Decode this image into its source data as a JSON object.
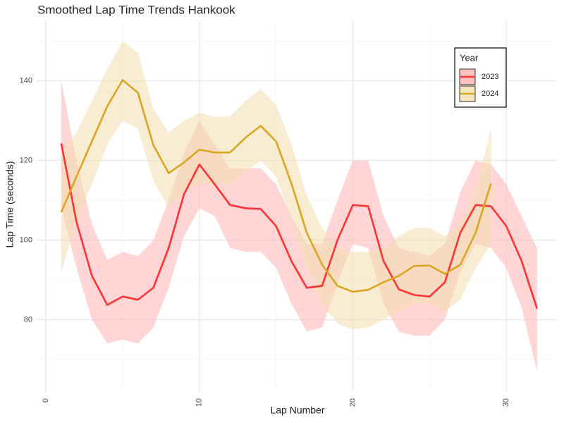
{
  "chart_data": {
    "type": "line",
    "title": "Smoothed Lap Time Trends Hankook",
    "x_label": "Lap Number",
    "y_label": "Lap Time (seconds)",
    "xlim": [
      -0.6,
      33.3
    ],
    "ylim": [
      62,
      155
    ],
    "xticks": [
      0,
      10,
      20,
      30
    ],
    "yticks": [
      80,
      100,
      120,
      140
    ],
    "grid": true,
    "legend_title": "Year",
    "legend_position": "top-right",
    "series": [
      {
        "name": "2023",
        "color": "#ff3333",
        "band_color": "#ffb3b3",
        "x": [
          1,
          2,
          3,
          4,
          5,
          6,
          7,
          8,
          9,
          10,
          11,
          12,
          13,
          14,
          15,
          16,
          17,
          18,
          19,
          20,
          21,
          22,
          23,
          24,
          25,
          26,
          27,
          28,
          29,
          30,
          31,
          32
        ],
        "values": [
          124.3,
          104.5,
          91,
          83.7,
          85.8,
          85,
          88,
          98,
          111.5,
          119,
          114,
          108.8,
          108,
          107.8,
          103.5,
          94.7,
          88,
          88.5,
          100,
          108.8,
          108.5,
          94.7,
          87.6,
          86.2,
          85.8,
          89.4,
          101.8,
          108.8,
          108.5,
          103.5,
          94.7,
          82.8
        ],
        "lower": [
          108,
          93,
          80,
          74,
          75,
          74,
          78,
          88,
          101,
          108,
          106,
          98,
          97,
          97,
          93,
          84,
          77,
          78,
          89,
          99,
          98,
          84,
          77,
          76,
          76,
          80,
          92,
          99,
          98,
          93,
          83,
          67
        ],
        "upper": [
          140,
          120,
          104,
          95,
          97,
          96,
          100,
          110,
          122,
          130,
          124,
          118,
          118,
          118,
          114,
          106,
          99,
          99,
          110,
          120,
          120,
          106,
          98,
          97,
          96,
          99,
          112,
          120,
          119,
          114,
          106,
          98
        ]
      },
      {
        "name": "2024",
        "color": "#daa520",
        "band_color": "#f3dfae",
        "x": [
          1,
          2,
          3,
          4,
          5,
          6,
          7,
          8,
          9,
          10,
          11,
          12,
          13,
          14,
          15,
          16,
          17,
          18,
          19,
          20,
          21,
          22,
          23,
          24,
          25,
          26,
          27,
          28,
          29
        ],
        "values": [
          107,
          116,
          124.8,
          133.6,
          140.2,
          137,
          123.9,
          116.8,
          119.5,
          122.7,
          122,
          122,
          125.7,
          128.7,
          124.8,
          114.2,
          101.8,
          93.8,
          88.5,
          87,
          87.5,
          89.4,
          91,
          93.5,
          93.6,
          91.5,
          93.8,
          101.8,
          114.2
        ],
        "lower": [
          92,
          105,
          114,
          124,
          130,
          128,
          115,
          108,
          112,
          114,
          114,
          114,
          117,
          120,
          116,
          105,
          93,
          84,
          79,
          77.5,
          78,
          80,
          82,
          84,
          84,
          82,
          85,
          93,
          99
        ],
        "upper": [
          122,
          127,
          135,
          143,
          150,
          147,
          133,
          127,
          130,
          132,
          131,
          131,
          135,
          138,
          134,
          124,
          111,
          103,
          98,
          97,
          97,
          98,
          101,
          103,
          103,
          101,
          104,
          112,
          128
        ]
      }
    ]
  }
}
